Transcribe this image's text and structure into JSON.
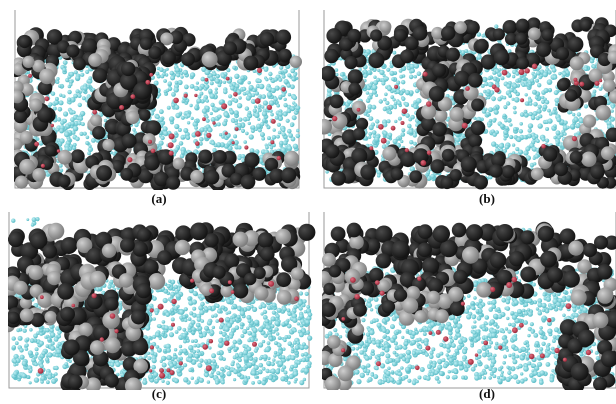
{
  "figure": {
    "panels": [
      {
        "label": "(a)"
      },
      {
        "label": "(b)"
      },
      {
        "label": "(c)"
      },
      {
        "label": "(d)"
      }
    ],
    "colors": {
      "black_spheres": "#141414",
      "gray_spheres": "#7d7d7d",
      "cyan_spheres": "#5bbcc6",
      "red_spheres": "#a0283a",
      "frame": "#9a9a9a",
      "background": "#ffffff"
    }
  }
}
